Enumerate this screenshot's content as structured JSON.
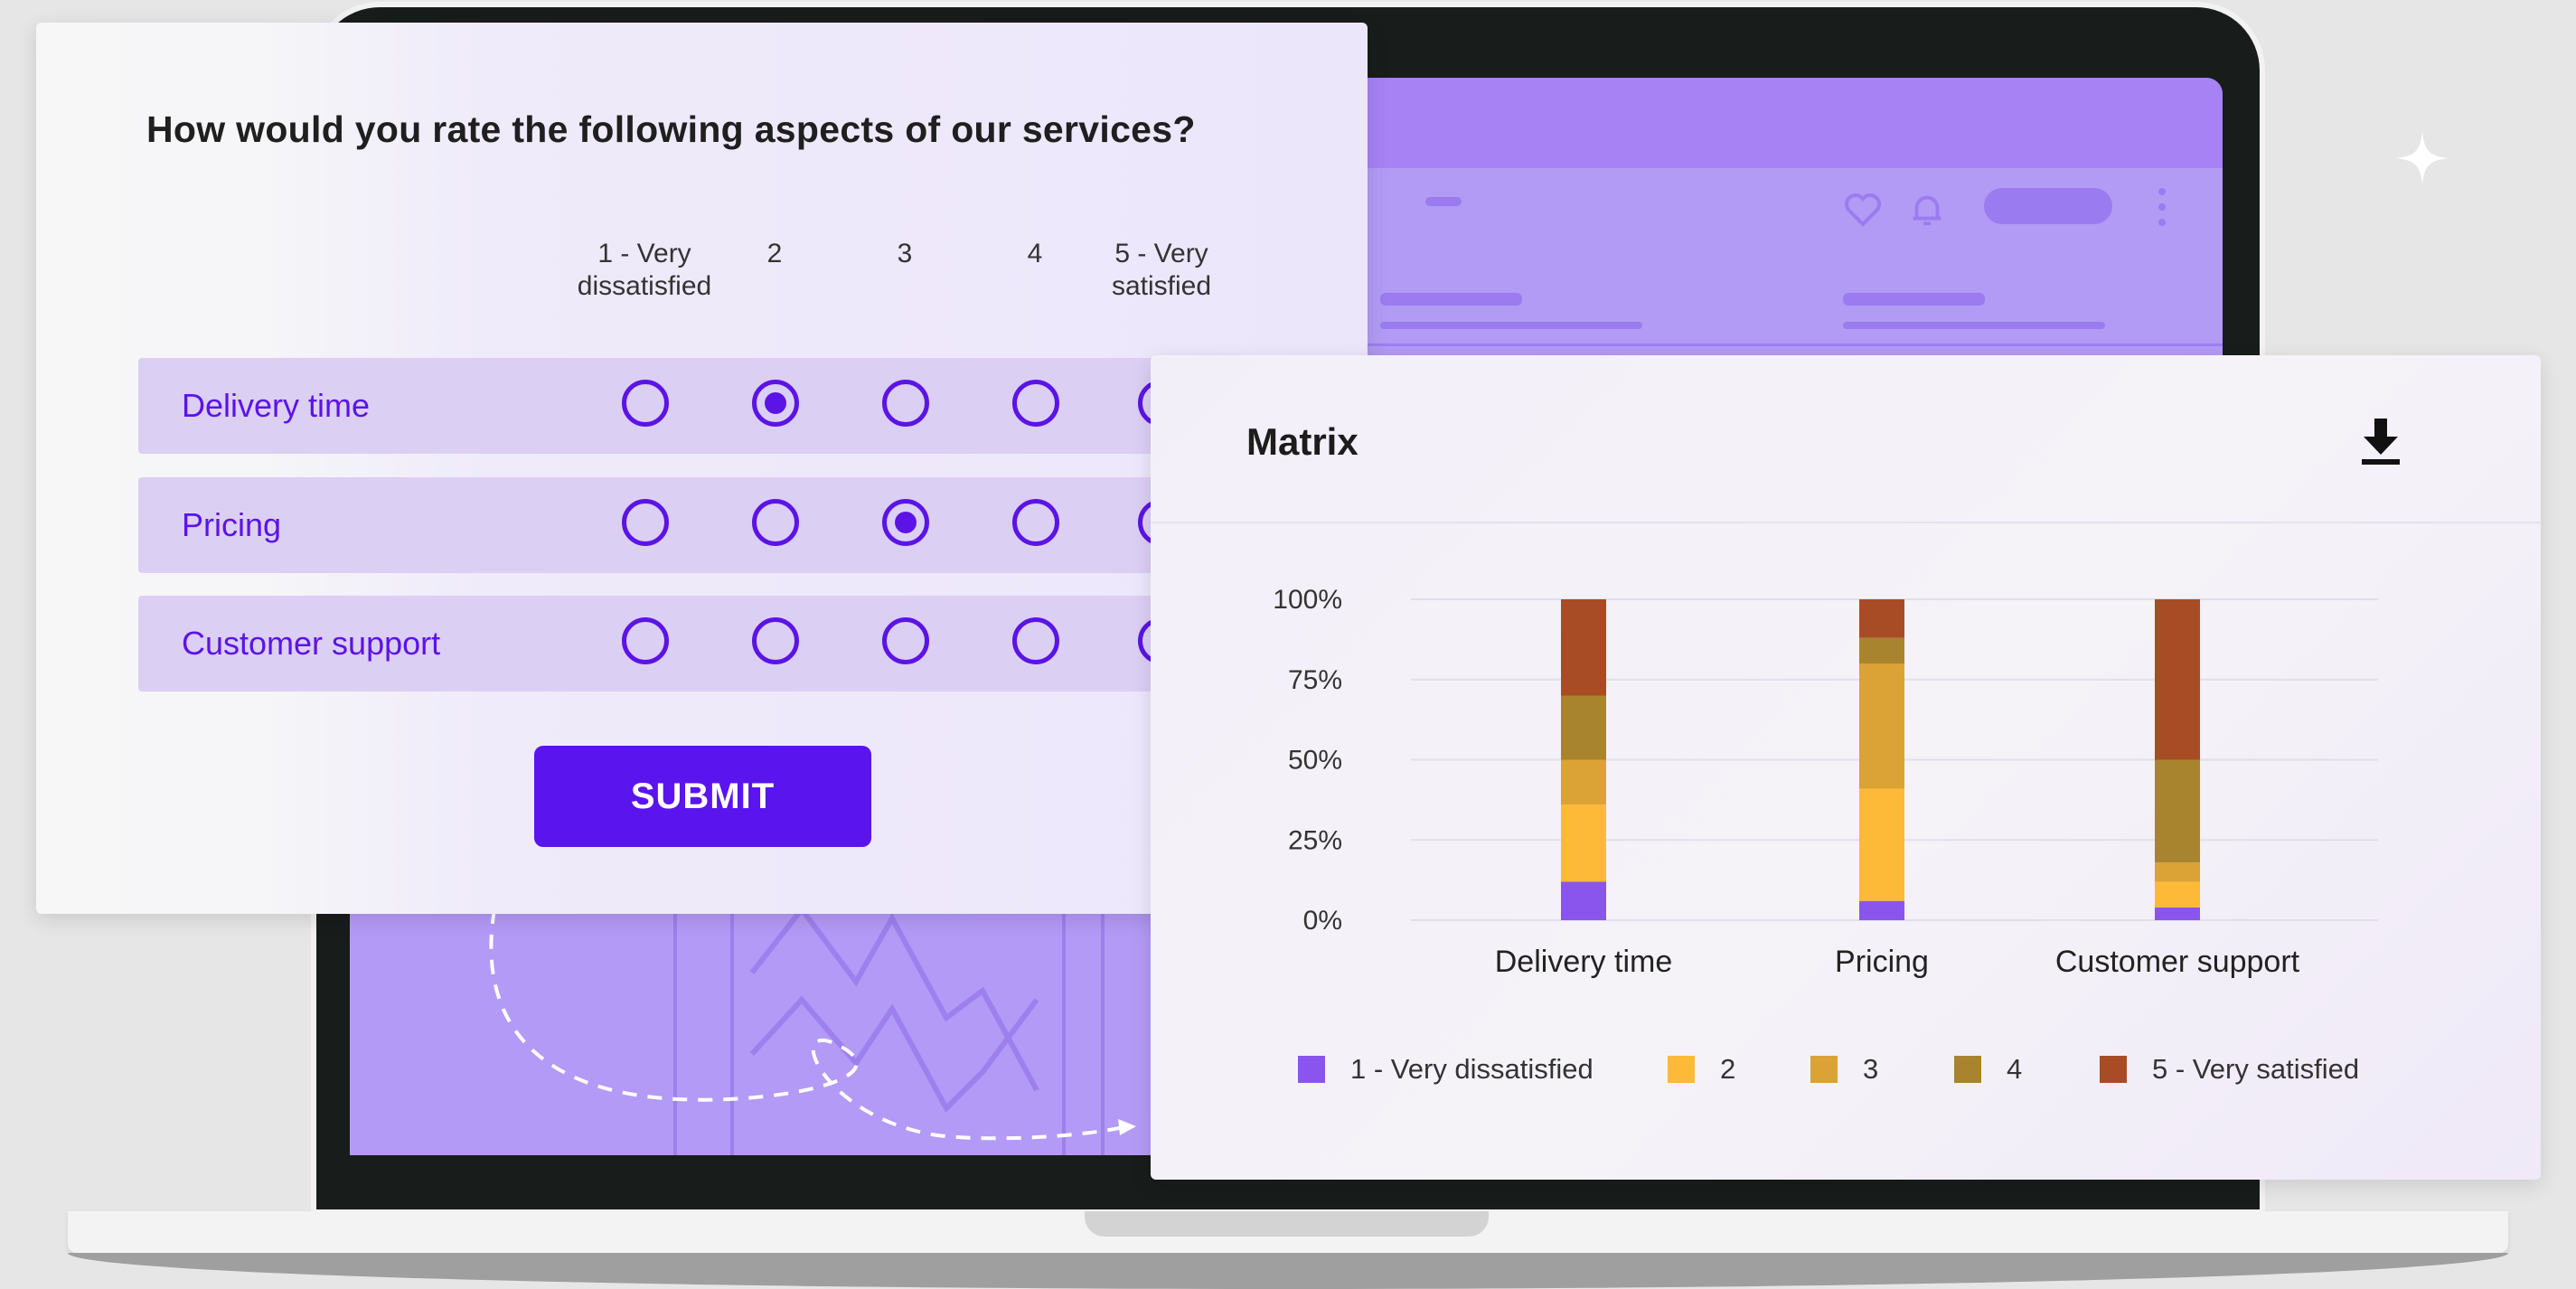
{
  "survey": {
    "question": "How would you rate the following aspects of our services?",
    "scale_headers": [
      "1 - Very\ndissatisfied",
      "2",
      "3",
      "4",
      "5 - Very\nsatisfied"
    ],
    "rows": [
      {
        "label": "Delivery time",
        "selected": 2
      },
      {
        "label": "Pricing",
        "selected": 3
      },
      {
        "label": "Customer support",
        "selected": null
      }
    ],
    "submit_label": "SUBMIT"
  },
  "matrix": {
    "title": "Matrix",
    "download_icon": "download-icon"
  },
  "chart_data": {
    "type": "bar",
    "stacked": true,
    "categories": [
      "Delivery time",
      "Pricing",
      "Customer support"
    ],
    "ylim": [
      0,
      100
    ],
    "yticks": [
      "0%",
      "25%",
      "50%",
      "75%",
      "100%"
    ],
    "series": [
      {
        "name": "1 - Very dissatisfied",
        "color": "#8a55ec",
        "values": [
          12,
          6,
          4
        ]
      },
      {
        "name": "2",
        "color": "#fdb938",
        "values": [
          24,
          35,
          8
        ]
      },
      {
        "name": "3",
        "color": "#dba236",
        "values": [
          14,
          39,
          6
        ]
      },
      {
        "name": "4",
        "color": "#a9842e",
        "values": [
          20,
          8,
          32
        ]
      },
      {
        "name": "5 - Very satisfied",
        "color": "#a84c25",
        "values": [
          30,
          12,
          50
        ]
      }
    ],
    "legend_position": "bottom",
    "grid": true
  }
}
